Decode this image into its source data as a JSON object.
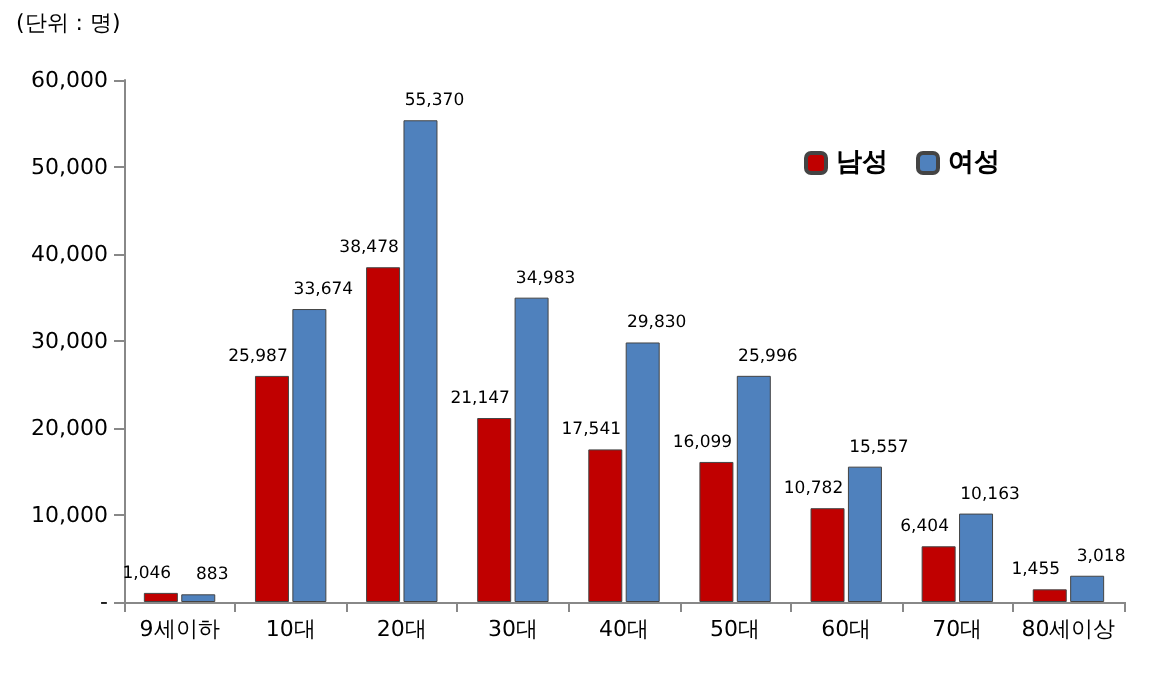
{
  "chart_data": {
    "type": "bar",
    "annotations": [
      "(단위 : 명)"
    ],
    "categories": [
      "9세이하",
      "10대",
      "20대",
      "30대",
      "40대",
      "50대",
      "60대",
      "70대",
      "80세이상"
    ],
    "series": [
      {
        "name": "남성",
        "color": "#c00000",
        "values": [
          1046,
          25987,
          38478,
          21147,
          17541,
          16099,
          10782,
          6404,
          1455
        ],
        "value_labels": [
          "1,046",
          "25,987",
          "38,478",
          "21,147",
          "17,541",
          "16,099",
          "10,782",
          "6,404",
          "1,455"
        ]
      },
      {
        "name": "여성",
        "color": "#4f81bd",
        "values": [
          883,
          33674,
          55370,
          34983,
          29830,
          25996,
          15557,
          10163,
          3018
        ],
        "value_labels": [
          "883",
          "33,674",
          "55,370",
          "34,983",
          "29,830",
          "25,996",
          "15,557",
          "10,163",
          "3,018"
        ]
      }
    ],
    "ylim": [
      0,
      60000
    ],
    "yticks": [
      {
        "value": 0,
        "label": "-"
      },
      {
        "value": 10000,
        "label": "10,000"
      },
      {
        "value": 20000,
        "label": "20,000"
      },
      {
        "value": 30000,
        "label": "30,000"
      },
      {
        "value": 40000,
        "label": "40,000"
      },
      {
        "value": 50000,
        "label": "50,000"
      },
      {
        "value": 60000,
        "label": "60,000"
      }
    ],
    "legend": "top right",
    "grid": false
  }
}
